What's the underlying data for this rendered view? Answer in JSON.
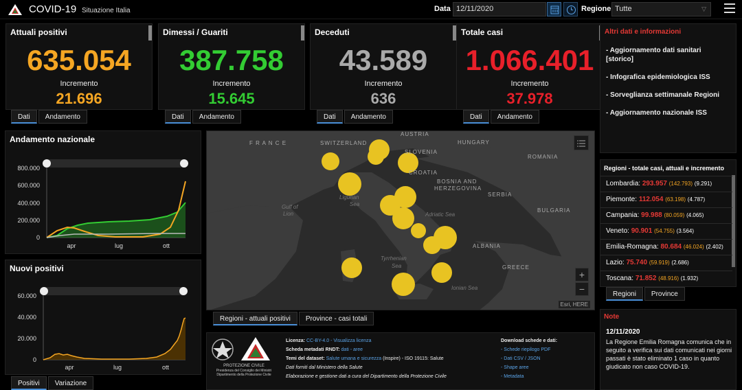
{
  "header": {
    "title": "COVID-19",
    "subtitle": "Situazione Italia",
    "date_label": "Data",
    "date_value": "12/11/2020",
    "region_label": "Regione",
    "region_value": "Tutte"
  },
  "cards": [
    {
      "title": "Attuali positivi",
      "value": "635.054",
      "inc_label": "Incremento",
      "increment": "21.696",
      "color": "#f5a623"
    },
    {
      "title": "Dimessi / Guariti",
      "value": "387.758",
      "inc_label": "Incremento",
      "increment": "15.645",
      "color": "#33cc33"
    },
    {
      "title": "Deceduti",
      "value": "43.589",
      "inc_label": "Incremento",
      "increment": "636",
      "color": "#aaaaaa"
    },
    {
      "title": "Totale casi",
      "value": "1.066.401",
      "inc_label": "Incremento",
      "increment": "37.978",
      "color": "#e8202a"
    }
  ],
  "card_tabs": {
    "data": "Dati",
    "trend": "Andamento"
  },
  "andamento": {
    "title": "Andamento nazionale",
    "yticks": [
      "800.000",
      "600.000",
      "400.000",
      "200.000",
      "0"
    ],
    "xticks": [
      "apr",
      "lug",
      "ott"
    ]
  },
  "nuovi": {
    "title": "Nuovi positivi",
    "yticks": [
      "60.000",
      "40.000",
      "20.000",
      "0"
    ],
    "xticks": [
      "apr",
      "lug",
      "ott"
    ],
    "tabs": {
      "positive": "Positivi",
      "variation": "Variazione"
    }
  },
  "map": {
    "labels": {
      "france": "F R A N C E",
      "switzerland": "SWITZERLAND",
      "austria": "AUSTRIA",
      "hungary": "HUNGARY",
      "slovenia": "SLOVENIA",
      "croatia": "CROATIA",
      "romania": "ROMANIA",
      "bosnia": "BOSNIA AND",
      "herzegovina": "HERZEGOVINA",
      "serbia": "SERBIA",
      "bulgaria": "BULGARIA",
      "albania": "ALBANIA",
      "greece": "GREECE",
      "ligurian": "Ligurian",
      "ligurian_sea": "Sea",
      "gulf": "Gulf of",
      "lion": "Lion",
      "adriatic": "Adriatic Sea",
      "tyrrhenian": "Tyrrhenian",
      "tyrrhenian_sea": "Sea",
      "ionian": "Ionian Sea"
    },
    "attribution": "Esri, HERE",
    "tabs": {
      "regions": "Regioni - attuali positivi",
      "provinces": "Province - casi totali"
    },
    "zoom_in": "+",
    "zoom_out": "−"
  },
  "info": {
    "title": "Altri dati e informazioni",
    "items": [
      "- Aggiornamento dati sanitari",
      "  [storico]",
      "- Infografica epidemiologica ISS",
      "- Sorveglianza settimanale Regioni",
      "- Aggiornamento nazionale ISS"
    ]
  },
  "regions": {
    "title": "Regioni - totale casi, attuali e incremento",
    "rows": [
      {
        "name": "Lombardia:",
        "total": "293.957",
        "active": "(142.793)",
        "inc": "(9.291)"
      },
      {
        "name": "Piemonte:",
        "total": "112.054",
        "active": "(63.198)",
        "inc": "(4.787)"
      },
      {
        "name": "Campania:",
        "total": "99.988",
        "active": "(80.059)",
        "inc": "(4.065)"
      },
      {
        "name": "Veneto:",
        "total": "90.901",
        "active": "(54.755)",
        "inc": "(3.564)"
      },
      {
        "name": "Emilia-Romagna:",
        "total": "80.684",
        "active": "(46.024)",
        "inc": "(2.402)"
      },
      {
        "name": "Lazio:",
        "total": "75.740",
        "active": "(59.919)",
        "inc": "(2.686)"
      },
      {
        "name": "Toscana:",
        "total": "71.852",
        "active": "(48.916)",
        "inc": "(1.932)"
      }
    ],
    "tabs": {
      "regions": "Regioni",
      "provinces": "Province"
    }
  },
  "notes": {
    "title": "Note",
    "date": "12/11/2020",
    "text": "La Regione Emilia Romagna comunica che in seguito a verifica sui dati comunicati nei giorni passati è stato eliminato 1 caso in quanto giudicato non caso COVID-19."
  },
  "credits": {
    "org_name": "PROTEZIONE CIVILE",
    "org_sub1": "Presidenza del Consiglio dei Ministri",
    "org_sub2": "Dipartimento della Protezione Civile",
    "license_label": "Licenza:",
    "license_value": "CC-BY-4.0 - Visualizza licenza",
    "metadata_label": "Scheda metadati RNDT:",
    "metadata_value": "dati - aree",
    "themes_label": "Temi del dataset:",
    "themes_link": "Salute umana e sicurezza",
    "themes_rest": "(Inspire) - ISO 19115: Salute",
    "source": "Dati forniti dal Ministero della Salute",
    "processing": "Elaborazione e gestione dati a cura del Dipartimento della Protezione Civile",
    "download_title": "Download schede e dati:",
    "downloads": [
      "- Schede riepilogo PDF",
      "- Dati CSV / JSON",
      "- Shape aree",
      "- Metadata"
    ]
  }
}
